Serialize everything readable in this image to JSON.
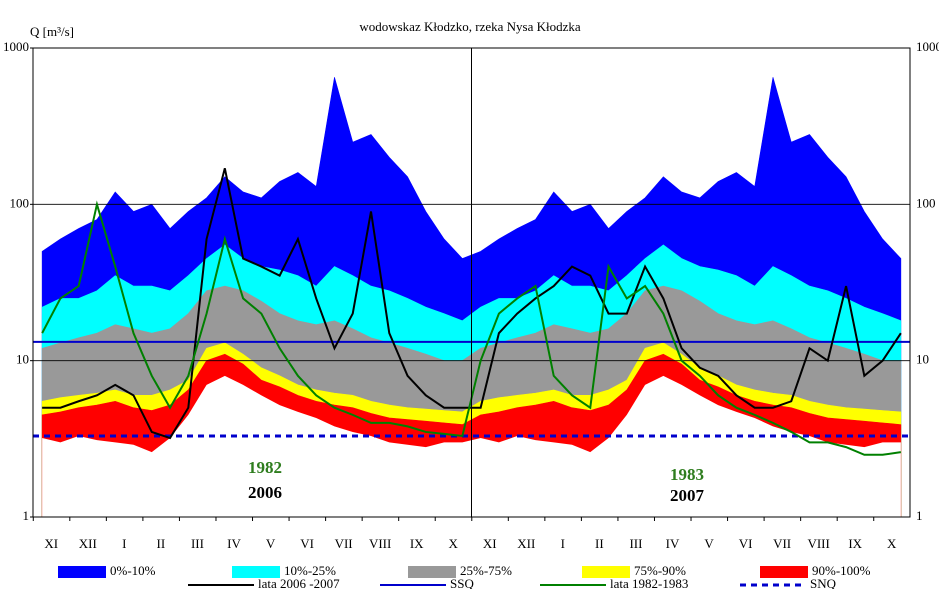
{
  "chart_data": {
    "type": "band-line",
    "title": "wodowskaz Kłodzko, rzeka Nysa Kłodzka",
    "y_label": "Q [m³/s]",
    "log_scale": true,
    "grid": true,
    "xlim": [
      0,
      24
    ],
    "ylim": [
      1,
      1000
    ],
    "yticks": [
      1,
      10,
      100,
      1000
    ],
    "xticks": [
      {
        "value": 0.5,
        "label": "XI"
      },
      {
        "value": 1.5,
        "label": "XII"
      },
      {
        "value": 2.5,
        "label": "I"
      },
      {
        "value": 3.5,
        "label": "II"
      },
      {
        "value": 4.5,
        "label": "III"
      },
      {
        "value": 5.5,
        "label": "IV"
      },
      {
        "value": 6.5,
        "label": "V"
      },
      {
        "value": 7.5,
        "label": "VI"
      },
      {
        "value": 8.5,
        "label": "VII"
      },
      {
        "value": 9.5,
        "label": "VIII"
      },
      {
        "value": 10.5,
        "label": "IX"
      },
      {
        "value": 11.5,
        "label": "X"
      },
      {
        "value": 12.5,
        "label": "XI"
      },
      {
        "value": 13.5,
        "label": "XII"
      },
      {
        "value": 14.5,
        "label": "I"
      },
      {
        "value": 15.5,
        "label": "II"
      },
      {
        "value": 16.5,
        "label": "III"
      },
      {
        "value": 17.5,
        "label": "IV"
      },
      {
        "value": 18.5,
        "label": "V"
      },
      {
        "value": 19.5,
        "label": "VI"
      },
      {
        "value": 20.5,
        "label": "VII"
      },
      {
        "value": 21.5,
        "label": "VIII"
      },
      {
        "value": 22.5,
        "label": "IX"
      },
      {
        "value": 23.5,
        "label": "X"
      }
    ],
    "x": [
      0.25,
      0.75,
      1.25,
      1.75,
      2.25,
      2.75,
      3.25,
      3.75,
      4.25,
      4.75,
      5.25,
      5.75,
      6.25,
      6.75,
      7.25,
      7.75,
      8.25,
      8.75,
      9.25,
      9.75,
      10.25,
      10.75,
      11.25,
      11.75,
      12.25,
      12.75,
      13.25,
      13.75,
      14.25,
      14.75,
      15.25,
      15.75,
      16.25,
      16.75,
      17.25,
      17.75,
      18.25,
      18.75,
      19.25,
      19.75,
      20.25,
      20.75,
      21.25,
      21.75,
      22.25,
      22.75,
      23.25,
      23.75
    ],
    "bands": [
      {
        "name": "0%-10%",
        "color": "#0000ff",
        "values": [
          50,
          60,
          70,
          80,
          120,
          90,
          100,
          70,
          90,
          110,
          150,
          120,
          110,
          140,
          160,
          130,
          650,
          250,
          280,
          200,
          150,
          90,
          60,
          45,
          50,
          60,
          70,
          80,
          120,
          90,
          100,
          70,
          90,
          110,
          150,
          120,
          110,
          140,
          160,
          130,
          650,
          250,
          280,
          200,
          150,
          90,
          60,
          45
        ]
      },
      {
        "name": "10%-25%",
        "color": "#00ffff",
        "values": [
          22,
          25,
          25,
          28,
          35,
          30,
          30,
          28,
          35,
          45,
          55,
          45,
          40,
          38,
          35,
          30,
          40,
          35,
          30,
          28,
          25,
          22,
          20,
          18,
          22,
          25,
          25,
          28,
          35,
          30,
          30,
          28,
          35,
          45,
          55,
          45,
          40,
          38,
          35,
          30,
          40,
          35,
          30,
          28,
          25,
          22,
          20,
          18
        ]
      },
      {
        "name": "25%-75%",
        "color": "#999999",
        "values": [
          12,
          13,
          14,
          15,
          17,
          16,
          15,
          16,
          20,
          28,
          30,
          28,
          24,
          20,
          18,
          17,
          18,
          16,
          14,
          13,
          12,
          11,
          10,
          10,
          12,
          13,
          14,
          15,
          17,
          16,
          15,
          16,
          20,
          28,
          30,
          28,
          24,
          20,
          18,
          17,
          18,
          16,
          14,
          13,
          12,
          11,
          10,
          10
        ]
      },
      {
        "name": "75%-90%",
        "color": "#ffff00",
        "values": [
          5.5,
          5.8,
          6,
          6.2,
          6.5,
          6,
          6,
          6.5,
          7.5,
          12,
          13,
          11,
          9,
          8,
          7,
          6.5,
          6.2,
          6,
          5.5,
          5.2,
          5,
          4.9,
          4.8,
          4.7,
          5.5,
          5.8,
          6,
          6.2,
          6.5,
          6,
          6,
          6.5,
          7.5,
          12,
          13,
          11,
          9,
          8,
          7,
          6.5,
          6.2,
          6,
          5.5,
          5.2,
          5,
          4.9,
          4.8,
          4.7
        ]
      },
      {
        "name": "90%-100%",
        "color": "#ff0000",
        "values": [
          4.5,
          4.7,
          5,
          5.2,
          5.5,
          5,
          4.8,
          5.2,
          6.5,
          10,
          11,
          9.5,
          7.5,
          6.8,
          6,
          5.5,
          5.2,
          5,
          4.6,
          4.3,
          4.2,
          4.1,
          4,
          3.9,
          4.5,
          4.7,
          5,
          5.2,
          5.5,
          5,
          4.8,
          5.2,
          6.5,
          10,
          11,
          9.5,
          7.5,
          6.8,
          6,
          5.5,
          5.2,
          5,
          4.6,
          4.3,
          4.2,
          4.1,
          4,
          3.9
        ],
        "lower": [
          3.2,
          3,
          3.3,
          3.1,
          3,
          2.9,
          2.6,
          3.2,
          4.5,
          7,
          8,
          7,
          6,
          5.2,
          4.7,
          4.3,
          3.8,
          3.5,
          3.3,
          3,
          2.9,
          2.8,
          3,
          3,
          3.2,
          3,
          3.3,
          3.1,
          3,
          2.9,
          2.6,
          3.2,
          4.5,
          7,
          8,
          7,
          6,
          5.2,
          4.7,
          4.3,
          3.8,
          3.5,
          3.3,
          3,
          2.9,
          2.8,
          3,
          3
        ]
      }
    ],
    "series": [
      {
        "name": "lata 2006 -2007",
        "color": "#000000",
        "values": [
          5,
          5,
          5.5,
          6,
          7,
          6,
          3.5,
          3.2,
          5,
          60,
          170,
          45,
          40,
          35,
          60,
          25,
          12,
          20,
          90,
          15,
          8,
          6,
          5,
          5,
          5,
          15,
          20,
          25,
          30,
          40,
          35,
          20,
          20,
          40,
          25,
          12,
          9,
          8,
          6,
          5,
          5,
          5.5,
          12,
          10,
          30,
          8,
          10,
          15
        ]
      },
      {
        "name": "lata 1982-1983",
        "color": "#008000",
        "values": [
          15,
          25,
          30,
          100,
          40,
          15,
          8,
          5,
          8,
          20,
          60,
          25,
          20,
          12,
          8,
          6,
          5,
          4.5,
          4,
          4,
          3.8,
          3.5,
          3.4,
          3.3,
          10,
          20,
          25,
          30,
          8,
          6,
          5,
          40,
          25,
          30,
          20,
          10,
          8,
          6,
          5,
          4.5,
          4,
          3.5,
          3,
          3,
          2.8,
          2.5,
          2.5,
          2.6
        ]
      }
    ],
    "reference_lines": [
      {
        "name": "SSQ",
        "color": "#0000cc",
        "value": 13.2,
        "dashed": false
      },
      {
        "name": "SNQ",
        "color": "#0000cc",
        "value": 3.3,
        "dashed": true
      }
    ],
    "annotations": [
      {
        "text": "1982",
        "color": "#2e7d1e"
      },
      {
        "text": "2006",
        "color": "#000000"
      },
      {
        "text": "1983",
        "color": "#2e7d1e"
      },
      {
        "text": "2007",
        "color": "#000000"
      }
    ]
  }
}
